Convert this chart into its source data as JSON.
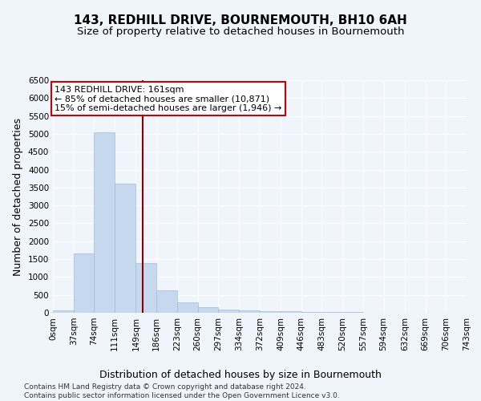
{
  "title": "143, REDHILL DRIVE, BOURNEMOUTH, BH10 6AH",
  "subtitle": "Size of property relative to detached houses in Bournemouth",
  "xlabel": "Distribution of detached houses by size in Bournemouth",
  "ylabel": "Number of detached properties",
  "footer_line1": "Contains HM Land Registry data © Crown copyright and database right 2024.",
  "footer_line2": "Contains public sector information licensed under the Open Government Licence v3.0.",
  "bin_edges": [
    0,
    37,
    74,
    111,
    149,
    186,
    223,
    260,
    297,
    334,
    372,
    409,
    446,
    483,
    520,
    557,
    594,
    632,
    669,
    706,
    743
  ],
  "bin_labels": [
    "0sqm",
    "37sqm",
    "74sqm",
    "111sqm",
    "149sqm",
    "186sqm",
    "223sqm",
    "260sqm",
    "297sqm",
    "334sqm",
    "372sqm",
    "409sqm",
    "446sqm",
    "483sqm",
    "520sqm",
    "557sqm",
    "594sqm",
    "632sqm",
    "669sqm",
    "706sqm",
    "743sqm"
  ],
  "bar_values": [
    75,
    1650,
    5050,
    3600,
    1400,
    625,
    300,
    150,
    100,
    75,
    50,
    50,
    30,
    20,
    15,
    10,
    5,
    5,
    5,
    5
  ],
  "bar_color": "#c5d8ed",
  "bar_edgecolor": "#a0bcd8",
  "property_size": 161,
  "vline_color": "#8b0000",
  "annotation_line1": "143 REDHILL DRIVE: 161sqm",
  "annotation_line2": "← 85% of detached houses are smaller (10,871)",
  "annotation_line3": "15% of semi-detached houses are larger (1,946) →",
  "annotation_box_color": "#ffffff",
  "annotation_box_edgecolor": "#cc0000",
  "ylim": [
    0,
    6500
  ],
  "yticks": [
    0,
    500,
    1000,
    1500,
    2000,
    2500,
    3000,
    3500,
    4000,
    4500,
    5000,
    5500,
    6000,
    6500
  ],
  "bg_color": "#f0f4fb",
  "grid_color": "#ffffff",
  "title_fontsize": 11,
  "subtitle_fontsize": 9.5,
  "tick_fontsize": 7.5,
  "label_fontsize": 9,
  "annotation_fontsize": 8
}
